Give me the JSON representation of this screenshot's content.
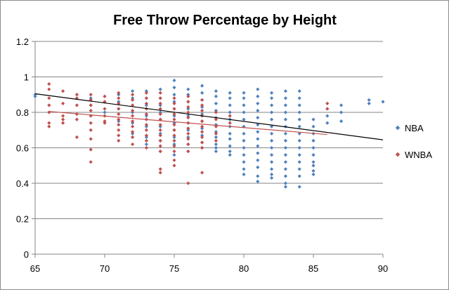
{
  "chart_data": {
    "type": "scatter",
    "title": "Free Throw Percentage by Height",
    "xlabel": "",
    "ylabel": "",
    "xlim": [
      65,
      90
    ],
    "ylim": [
      0,
      1.2
    ],
    "x_ticks": [
      65,
      70,
      75,
      80,
      85,
      90
    ],
    "y_ticks": [
      0,
      0.2,
      0.4,
      0.6,
      0.8,
      1,
      1.2
    ],
    "grid": "horizontal",
    "legend_position": "right",
    "series": [
      {
        "name": "NBA",
        "color": "#4F81BD",
        "marker": "diamond",
        "x": [
          65,
          65,
          69,
          69,
          70,
          70,
          71,
          71,
          71,
          71,
          72,
          72,
          72,
          72,
          72,
          73,
          73,
          73,
          73,
          73,
          73,
          73,
          74,
          74,
          74,
          74,
          74,
          74,
          74,
          74,
          74,
          75,
          75,
          75,
          75,
          75,
          75,
          75,
          75,
          75,
          75,
          75,
          76,
          76,
          76,
          76,
          76,
          76,
          76,
          76,
          76,
          76,
          77,
          77,
          77,
          77,
          77,
          77,
          77,
          77,
          77,
          77,
          78,
          78,
          78,
          78,
          78,
          78,
          78,
          78,
          78,
          78,
          78,
          79,
          79,
          79,
          79,
          79,
          79,
          79,
          79,
          79,
          79,
          79,
          80,
          80,
          80,
          80,
          80,
          80,
          80,
          80,
          80,
          80,
          80,
          80,
          80,
          81,
          81,
          81,
          81,
          81,
          81,
          81,
          81,
          81,
          81,
          81,
          81,
          81,
          81,
          82,
          82,
          82,
          82,
          82,
          82,
          82,
          82,
          82,
          82,
          82,
          82,
          82,
          82,
          83,
          83,
          83,
          83,
          83,
          83,
          83,
          83,
          83,
          83,
          83,
          83,
          83,
          83,
          83,
          84,
          84,
          84,
          84,
          84,
          84,
          84,
          84,
          84,
          84,
          84,
          84,
          84,
          84,
          85,
          85,
          85,
          85,
          85,
          85,
          85,
          85,
          85,
          85,
          86,
          86,
          86,
          87,
          87,
          87,
          89,
          89,
          90
        ],
        "y": [
          0.89,
          0.9,
          0.88,
          0.84,
          0.86,
          0.8,
          0.9,
          0.86,
          0.82,
          0.75,
          0.92,
          0.88,
          0.8,
          0.74,
          0.68,
          0.92,
          0.88,
          0.84,
          0.78,
          0.72,
          0.66,
          0.62,
          0.93,
          0.88,
          0.84,
          0.8,
          0.76,
          0.72,
          0.68,
          0.64,
          0.58,
          0.98,
          0.94,
          0.9,
          0.86,
          0.82,
          0.78,
          0.74,
          0.7,
          0.66,
          0.62,
          0.56,
          0.93,
          0.9,
          0.86,
          0.82,
          0.78,
          0.74,
          0.7,
          0.66,
          0.62,
          0.58,
          0.95,
          0.91,
          0.87,
          0.83,
          0.79,
          0.75,
          0.71,
          0.67,
          0.63,
          0.6,
          0.92,
          0.89,
          0.85,
          0.81,
          0.77,
          0.73,
          0.69,
          0.66,
          0.62,
          0.6,
          0.58,
          0.91,
          0.88,
          0.84,
          0.8,
          0.76,
          0.72,
          0.68,
          0.65,
          0.61,
          0.58,
          0.56,
          0.91,
          0.88,
          0.84,
          0.8,
          0.76,
          0.72,
          0.68,
          0.64,
          0.6,
          0.56,
          0.52,
          0.48,
          0.45,
          0.93,
          0.89,
          0.85,
          0.81,
          0.77,
          0.73,
          0.69,
          0.65,
          0.61,
          0.57,
          0.53,
          0.49,
          0.44,
          0.41,
          0.91,
          0.88,
          0.84,
          0.8,
          0.76,
          0.72,
          0.68,
          0.64,
          0.6,
          0.56,
          0.52,
          0.48,
          0.45,
          0.43,
          0.92,
          0.88,
          0.84,
          0.8,
          0.76,
          0.72,
          0.68,
          0.64,
          0.6,
          0.56,
          0.52,
          0.48,
          0.44,
          0.4,
          0.38,
          0.92,
          0.88,
          0.84,
          0.8,
          0.76,
          0.72,
          0.68,
          0.64,
          0.6,
          0.56,
          0.52,
          0.48,
          0.44,
          0.38,
          0.76,
          0.72,
          0.68,
          0.64,
          0.6,
          0.56,
          0.52,
          0.5,
          0.47,
          0.45,
          0.82,
          0.78,
          0.74,
          0.84,
          0.8,
          0.75,
          0.87,
          0.85,
          0.86
        ]
      },
      {
        "name": "WNBA",
        "color": "#C0504D",
        "marker": "diamond",
        "x": [
          66,
          66,
          66,
          66,
          66,
          66,
          66,
          67,
          67,
          67,
          67,
          67,
          68,
          68,
          68,
          68,
          68,
          68,
          69,
          69,
          69,
          69,
          69,
          69,
          69,
          69,
          69,
          69,
          70,
          70,
          70,
          70,
          70,
          70,
          71,
          71,
          71,
          71,
          71,
          71,
          71,
          71,
          71,
          71,
          72,
          72,
          72,
          72,
          72,
          72,
          72,
          72,
          72,
          72,
          73,
          73,
          73,
          73,
          73,
          73,
          73,
          73,
          73,
          73,
          73,
          74,
          74,
          74,
          74,
          74,
          74,
          74,
          74,
          74,
          74,
          74,
          74,
          74,
          74,
          75,
          75,
          75,
          75,
          75,
          75,
          75,
          75,
          75,
          75,
          75,
          75,
          75,
          76,
          76,
          76,
          76,
          76,
          76,
          76,
          76,
          76,
          76,
          76,
          76,
          77,
          77,
          77,
          77,
          77,
          77,
          77,
          77,
          77,
          77,
          77,
          78,
          78,
          78,
          78,
          78,
          79,
          79,
          86,
          86
        ],
        "y": [
          0.96,
          0.93,
          0.88,
          0.84,
          0.8,
          0.74,
          0.72,
          0.92,
          0.85,
          0.78,
          0.76,
          0.74,
          0.9,
          0.88,
          0.84,
          0.79,
          0.76,
          0.66,
          0.9,
          0.87,
          0.84,
          0.81,
          0.78,
          0.74,
          0.7,
          0.65,
          0.59,
          0.52,
          0.89,
          0.86,
          0.82,
          0.78,
          0.75,
          0.74,
          0.91,
          0.88,
          0.85,
          0.82,
          0.79,
          0.76,
          0.73,
          0.7,
          0.67,
          0.64,
          0.9,
          0.87,
          0.84,
          0.81,
          0.78,
          0.75,
          0.72,
          0.69,
          0.66,
          0.62,
          0.91,
          0.88,
          0.85,
          0.82,
          0.79,
          0.76,
          0.73,
          0.7,
          0.67,
          0.64,
          0.6,
          0.91,
          0.88,
          0.85,
          0.82,
          0.79,
          0.76,
          0.73,
          0.7,
          0.67,
          0.64,
          0.61,
          0.58,
          0.48,
          0.46,
          0.88,
          0.85,
          0.82,
          0.79,
          0.76,
          0.73,
          0.7,
          0.67,
          0.64,
          0.61,
          0.58,
          0.53,
          0.5,
          0.89,
          0.86,
          0.83,
          0.8,
          0.77,
          0.74,
          0.71,
          0.68,
          0.65,
          0.62,
          0.58,
          0.4,
          0.87,
          0.84,
          0.81,
          0.78,
          0.75,
          0.72,
          0.69,
          0.66,
          0.63,
          0.6,
          0.46,
          0.8,
          0.76,
          0.72,
          0.68,
          0.64,
          0.78,
          0.74,
          0.85,
          0.82
        ]
      }
    ],
    "trendlines": [
      {
        "series": "NBA",
        "color": "#000000",
        "x": [
          65,
          90
        ],
        "y": [
          0.905,
          0.645
        ]
      },
      {
        "series": "WNBA",
        "color": "#C0504D",
        "x": [
          66,
          86
        ],
        "y": [
          0.805,
          0.675
        ]
      }
    ]
  }
}
